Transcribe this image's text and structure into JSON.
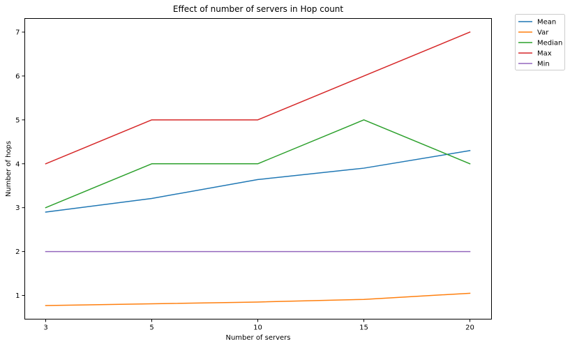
{
  "chart_data": {
    "type": "line",
    "title": "Effect of number of servers in Hop count",
    "xlabel": "Number of servers",
    "ylabel": "Number of hops",
    "categories": [
      "3",
      "5",
      "10",
      "15",
      "20"
    ],
    "ylim": [
      0.46,
      7.31
    ],
    "yticks": [
      1,
      2,
      3,
      4,
      5,
      6,
      7
    ],
    "grid": false,
    "legend_position": "outside-top-right",
    "series": [
      {
        "name": "Mean",
        "color": "#1f77b4",
        "values": [
          2.9,
          3.21,
          3.64,
          3.9,
          4.3
        ]
      },
      {
        "name": "Var",
        "color": "#ff7f0e",
        "values": [
          0.77,
          0.81,
          0.85,
          0.91,
          1.05
        ]
      },
      {
        "name": "Median",
        "color": "#2ca02c",
        "values": [
          3,
          4,
          4,
          5,
          4
        ]
      },
      {
        "name": "Max",
        "color": "#d62728",
        "values": [
          4,
          5,
          5,
          6,
          7
        ]
      },
      {
        "name": "Min",
        "color": "#9467bd",
        "values": [
          2,
          2,
          2,
          2,
          2
        ]
      }
    ]
  }
}
